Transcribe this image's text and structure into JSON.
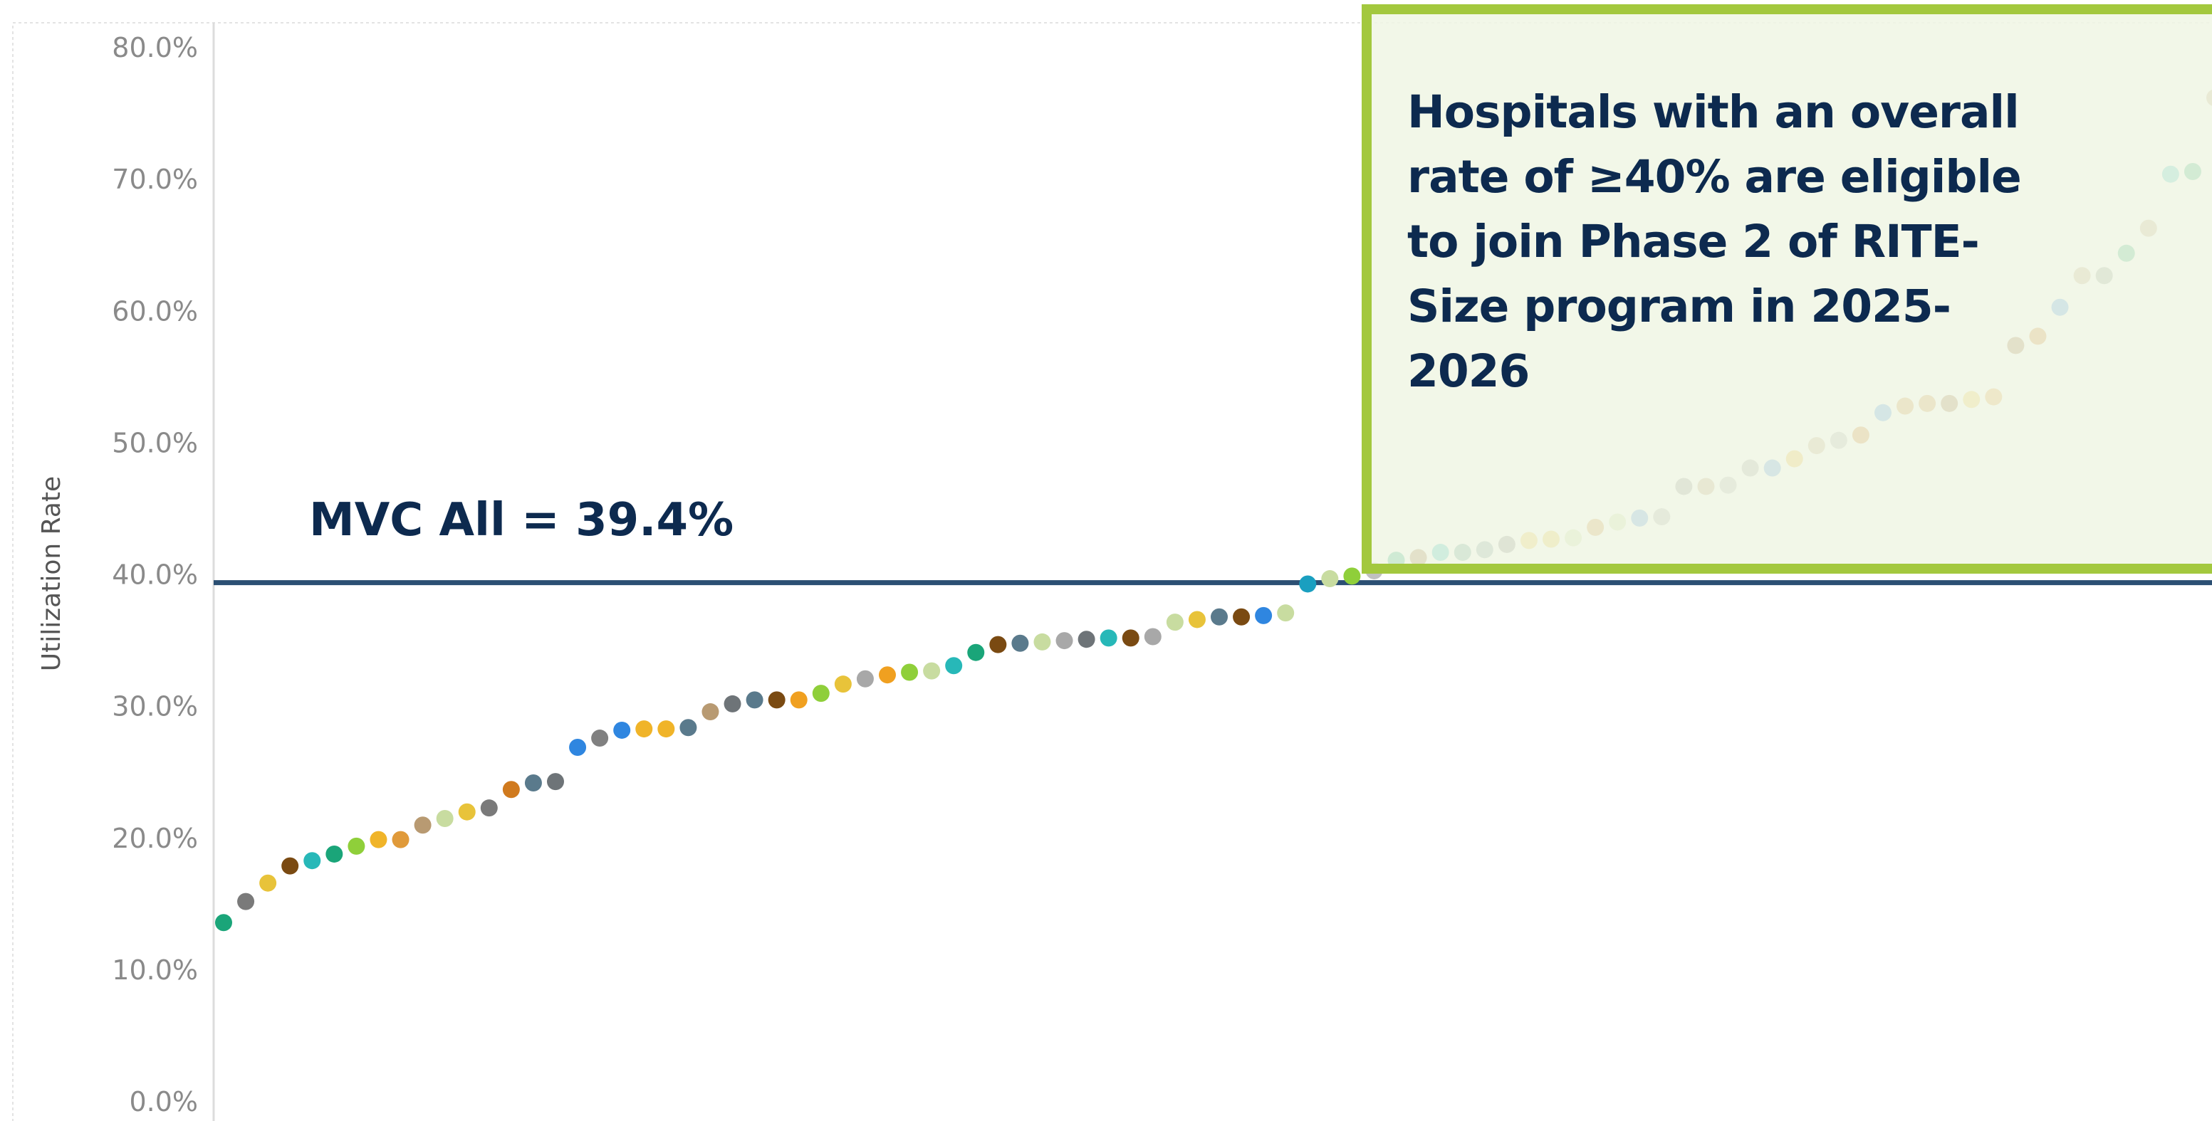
{
  "chart_data": {
    "type": "scatter",
    "ylabel": "Utilization Rate",
    "xlabel": "",
    "ylim": [
      0,
      80
    ],
    "y_ticks": [
      "0.0%",
      "10.0%",
      "20.0%",
      "30.0%",
      "40.0%",
      "50.0%",
      "60.0%",
      "70.0%",
      "80.0%"
    ],
    "y_axis_format": "percent",
    "reference_line": {
      "label": "MVC All = 39.4%",
      "value": 39.4,
      "color": "#2b4f73"
    },
    "annotation": {
      "text": "Hospitals with an overall rate of ≥40% are eligible to join Phase 2 of RITE-Size program in 2025-2026",
      "border_color": "#a3c83e"
    },
    "grid": false,
    "legend": "none",
    "x_axis": "hospitals ranked by utilization rate (no tick labels)",
    "points": [
      {
        "x": 1,
        "y": 13.6,
        "color": "#1aa579"
      },
      {
        "x": 2,
        "y": 15.2,
        "color": "#7a7a7a"
      },
      {
        "x": 3,
        "y": 16.6,
        "color": "#e8c33a"
      },
      {
        "x": 4,
        "y": 17.9,
        "color": "#7a4a12"
      },
      {
        "x": 5,
        "y": 18.3,
        "color": "#27b8b8"
      },
      {
        "x": 6,
        "y": 18.8,
        "color": "#1aa579"
      },
      {
        "x": 7,
        "y": 19.4,
        "color": "#8fcf3a"
      },
      {
        "x": 8,
        "y": 19.9,
        "color": "#f0b429"
      },
      {
        "x": 9,
        "y": 19.9,
        "color": "#e09a3a"
      },
      {
        "x": 10,
        "y": 21.0,
        "color": "#b89a72"
      },
      {
        "x": 11,
        "y": 21.5,
        "color": "#c8dca0"
      },
      {
        "x": 12,
        "y": 22.0,
        "color": "#e8c33a"
      },
      {
        "x": 13,
        "y": 22.3,
        "color": "#7a7a7a"
      },
      {
        "x": 14,
        "y": 23.7,
        "color": "#d07a1e"
      },
      {
        "x": 15,
        "y": 24.2,
        "color": "#5a7a8c"
      },
      {
        "x": 16,
        "y": 24.3,
        "color": "#6e7478"
      },
      {
        "x": 17,
        "y": 26.9,
        "color": "#2f86e0"
      },
      {
        "x": 18,
        "y": 27.6,
        "color": "#808080"
      },
      {
        "x": 19,
        "y": 28.2,
        "color": "#2f86e0"
      },
      {
        "x": 20,
        "y": 28.3,
        "color": "#f0b429"
      },
      {
        "x": 21,
        "y": 28.3,
        "color": "#f0b429"
      },
      {
        "x": 22,
        "y": 28.4,
        "color": "#5a7a8c"
      },
      {
        "x": 23,
        "y": 29.6,
        "color": "#b89a72"
      },
      {
        "x": 24,
        "y": 30.2,
        "color": "#6e7478"
      },
      {
        "x": 25,
        "y": 30.5,
        "color": "#5a7a8c"
      },
      {
        "x": 26,
        "y": 30.5,
        "color": "#7a4a12"
      },
      {
        "x": 27,
        "y": 30.5,
        "color": "#f0a020"
      },
      {
        "x": 28,
        "y": 31.0,
        "color": "#8fcf3a"
      },
      {
        "x": 29,
        "y": 31.7,
        "color": "#e8c33a"
      },
      {
        "x": 30,
        "y": 32.1,
        "color": "#a8a8a8"
      },
      {
        "x": 31,
        "y": 32.4,
        "color": "#f0a020"
      },
      {
        "x": 32,
        "y": 32.6,
        "color": "#8fcf3a"
      },
      {
        "x": 33,
        "y": 32.7,
        "color": "#c8dca0"
      },
      {
        "x": 34,
        "y": 33.1,
        "color": "#27b8b8"
      },
      {
        "x": 35,
        "y": 34.1,
        "color": "#1aa579"
      },
      {
        "x": 36,
        "y": 34.7,
        "color": "#7a4a12"
      },
      {
        "x": 37,
        "y": 34.8,
        "color": "#5a7a8c"
      },
      {
        "x": 38,
        "y": 34.9,
        "color": "#c8dca0"
      },
      {
        "x": 39,
        "y": 35.0,
        "color": "#a8a8a8"
      },
      {
        "x": 40,
        "y": 35.1,
        "color": "#6e7478"
      },
      {
        "x": 41,
        "y": 35.2,
        "color": "#27b8b8"
      },
      {
        "x": 42,
        "y": 35.2,
        "color": "#7a4a12"
      },
      {
        "x": 43,
        "y": 35.3,
        "color": "#a8a8a8"
      },
      {
        "x": 44,
        "y": 36.4,
        "color": "#c8dca0"
      },
      {
        "x": 45,
        "y": 36.6,
        "color": "#e8c33a"
      },
      {
        "x": 46,
        "y": 36.8,
        "color": "#5a7a8c"
      },
      {
        "x": 47,
        "y": 36.8,
        "color": "#7a4a12"
      },
      {
        "x": 48,
        "y": 36.9,
        "color": "#2f86e0"
      },
      {
        "x": 49,
        "y": 37.1,
        "color": "#c8dca0"
      },
      {
        "x": 50,
        "y": 39.3,
        "color": "#1a9fc0"
      },
      {
        "x": 51,
        "y": 39.7,
        "color": "#c8dca0"
      },
      {
        "x": 52,
        "y": 39.9,
        "color": "#8fcf3a"
      },
      {
        "x": 53,
        "y": 40.3,
        "color": "#c0c0c0"
      },
      {
        "x": 54,
        "y": 41.1,
        "color": "#1aa579"
      },
      {
        "x": 55,
        "y": 41.3,
        "color": "#9a6a3a"
      },
      {
        "x": 56,
        "y": 41.7,
        "color": "#27b8b8"
      },
      {
        "x": 57,
        "y": 41.7,
        "color": "#5a9a8c"
      },
      {
        "x": 58,
        "y": 41.9,
        "color": "#7a9a9a"
      },
      {
        "x": 59,
        "y": 42.3,
        "color": "#808080"
      },
      {
        "x": 60,
        "y": 42.6,
        "color": "#f0c040"
      },
      {
        "x": 61,
        "y": 42.7,
        "color": "#e8c33a"
      },
      {
        "x": 62,
        "y": 42.8,
        "color": "#c8dca0"
      },
      {
        "x": 63,
        "y": 43.6,
        "color": "#d08a3a"
      },
      {
        "x": 64,
        "y": 44.0,
        "color": "#c8dca0"
      },
      {
        "x": 65,
        "y": 44.3,
        "color": "#4a90e2"
      },
      {
        "x": 66,
        "y": 44.4,
        "color": "#a8a8a8"
      },
      {
        "x": 67,
        "y": 46.7,
        "color": "#909090"
      },
      {
        "x": 68,
        "y": 46.7,
        "color": "#b89a72"
      },
      {
        "x": 69,
        "y": 46.8,
        "color": "#b0b0b0"
      },
      {
        "x": 70,
        "y": 48.1,
        "color": "#a0a0a0"
      },
      {
        "x": 71,
        "y": 48.1,
        "color": "#4a90e2"
      },
      {
        "x": 72,
        "y": 48.8,
        "color": "#f0b429"
      },
      {
        "x": 73,
        "y": 49.8,
        "color": "#c0a882"
      },
      {
        "x": 74,
        "y": 50.2,
        "color": "#b0b0b0"
      },
      {
        "x": 75,
        "y": 50.6,
        "color": "#d07a1e"
      },
      {
        "x": 76,
        "y": 52.3,
        "color": "#3f8ee8"
      },
      {
        "x": 77,
        "y": 52.8,
        "color": "#d08a3a"
      },
      {
        "x": 78,
        "y": 53.0,
        "color": "#d08a3a"
      },
      {
        "x": 79,
        "y": 53.0,
        "color": "#9a6a3a"
      },
      {
        "x": 80,
        "y": 53.3,
        "color": "#f0c040"
      },
      {
        "x": 81,
        "y": 53.5,
        "color": "#e09a3a"
      },
      {
        "x": 82,
        "y": 57.4,
        "color": "#9a6a3a"
      },
      {
        "x": 83,
        "y": 58.1,
        "color": "#d07a1e"
      },
      {
        "x": 84,
        "y": 60.3,
        "color": "#3f8ee8"
      },
      {
        "x": 85,
        "y": 62.7,
        "color": "#c0a882"
      },
      {
        "x": 86,
        "y": 62.7,
        "color": "#8a9a90"
      },
      {
        "x": 87,
        "y": 64.4,
        "color": "#2fae7a"
      },
      {
        "x": 88,
        "y": 66.3,
        "color": "#c0a882"
      },
      {
        "x": 89,
        "y": 70.4,
        "color": "#3fc0c0"
      },
      {
        "x": 90,
        "y": 70.6,
        "color": "#2fae7a"
      },
      {
        "x": 91,
        "y": 76.2,
        "color": "#c0a882"
      }
    ]
  }
}
